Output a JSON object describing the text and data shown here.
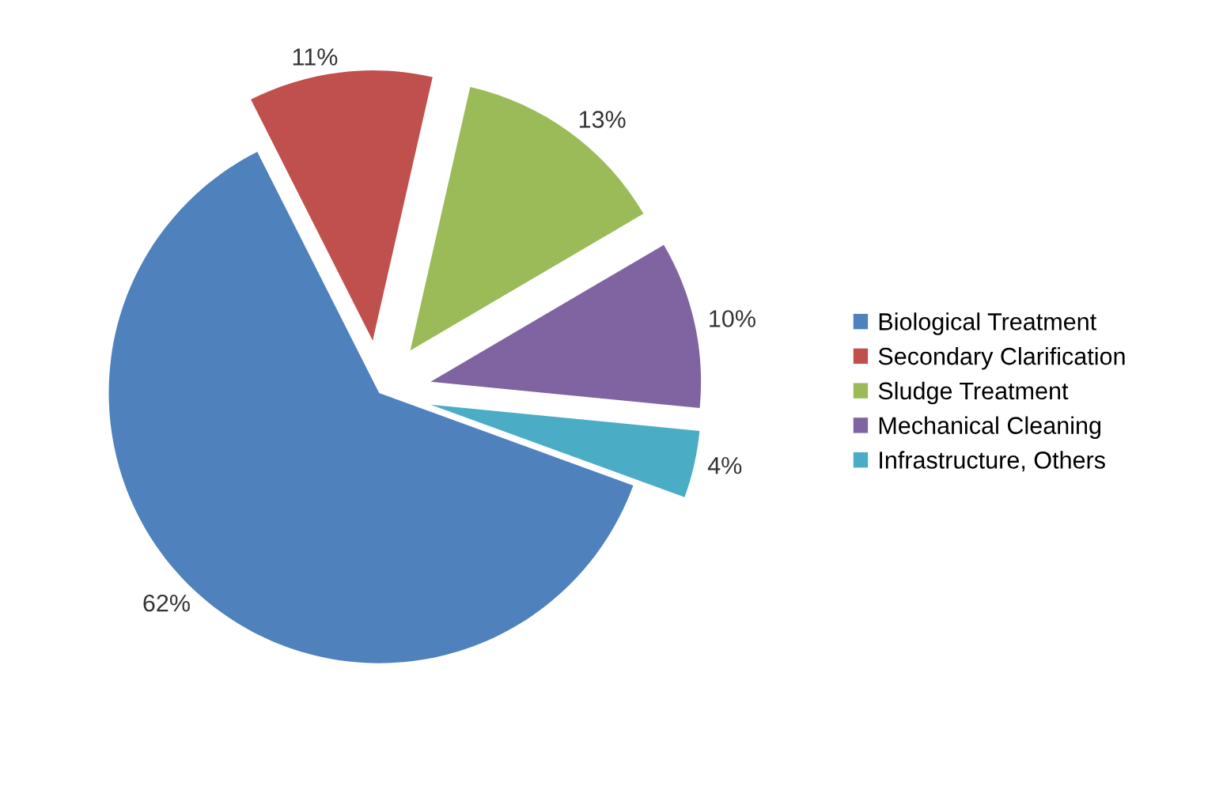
{
  "chart_data": {
    "type": "pie",
    "categories": [
      "Biological Treatment",
      "Secondary Clarification",
      "Sludge Treatment",
      "Mechanical Cleaning",
      "Infrastructure, Others"
    ],
    "values": [
      62,
      11,
      13,
      10,
      4
    ],
    "value_labels": [
      "62%",
      "11%",
      "13%",
      "10%",
      "4%"
    ],
    "colors": [
      "#4f81bd",
      "#c0504d",
      "#9bbb59",
      "#8064a2",
      "#4bacc6"
    ],
    "legend": "right"
  }
}
